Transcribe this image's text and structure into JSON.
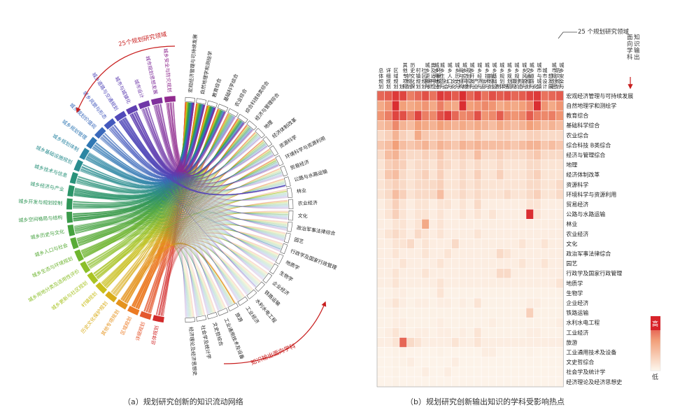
{
  "captions": {
    "a": "（a）规划研究创新的知识流动网络",
    "b": "（b）规划研究创新输出知识的学科受影响热点"
  },
  "chord": {
    "annotation_fields": "25个规划研究领域",
    "annotation_output": "知识输出面向学科"
  },
  "heatmap": {
    "axis_title_columns": "25 个规划研究领域",
    "axis_title_rows": "知识输出面向学科",
    "legend_high": "高",
    "legend_low": "低"
  },
  "colors": {
    "high": "#d8232a",
    "mid": "#f2a07a",
    "low": "#fdf7ee"
  },
  "chart_data": [
    {
      "type": "chord",
      "title": "",
      "groups_fields": [
        "总体规划",
        "详细规划",
        "区域规划",
        "其他专项规划",
        "历史文化保护规划",
        "村镇规划",
        "城乡更新与社区规划",
        "城乡用地分类及适用性评价",
        "城乡生态与环境规划",
        "城乡人口与社会",
        "城乡历史与文化",
        "城乡空间格局与结构",
        "城乡开发与规划控制",
        "城乡经济与产业",
        "城乡技术与信息",
        "城乡基础设施规划",
        "城乡规划体制",
        "城乡规划管理",
        "城乡规划价值观",
        "城乡风貌与形态",
        "城乡道路与交通规划",
        "城市与城镇化",
        "城市设计",
        "城市规划思想发展",
        "城乡安全与防灾规划"
      ],
      "groups_disciplines": [
        "宏观经济管理与可持续发展",
        "自然地理学和测绘学",
        "教育综合",
        "基础科学综合",
        "农业综合",
        "综合科技B类综合",
        "经济与管理综合",
        "地理",
        "经济体制改革",
        "资源科学",
        "环境科学与资源利用",
        "贸易经济",
        "公路与水路运输",
        "林业",
        "农业经济",
        "文化",
        "政治军事法律综合",
        "园艺",
        "行政学及国家行政管理",
        "地质学",
        "生物学",
        "企业经济",
        "铁路运输",
        "水利水电工程",
        "工业经济",
        "旅游",
        "工业通用技术及设备",
        "文史哲综合",
        "社会学及统计学",
        "经济理论及经济思想史"
      ]
    },
    {
      "type": "heatmap",
      "title": "",
      "columns": [
        "总体规划",
        "详细规划",
        "区域规划",
        "其他专项规划",
        "历史文化保护规划",
        "村镇规划",
        "城乡更新与社区规划",
        "城乡用地分类及适用性评价",
        "城乡生态与环境规划",
        "城乡人口与社会",
        "城乡历史与文化",
        "城乡空间格局与结构",
        "城乡开发与规划控制",
        "城乡经济与产业",
        "城乡技术与信息",
        "城乡基础设施规划",
        "城乡规划体制",
        "城乡规划管理",
        "城乡规划价值观",
        "城乡风貌与形态",
        "城乡道路与交通规划",
        "城市与城镇化",
        "城市设计",
        "城市规划思想发展",
        "城乡安全与防灾规划"
      ],
      "rows": [
        "宏观经济管理与可持续发展",
        "自然地理学和测绘学",
        "教育综合",
        "基础科学综合",
        "农业综合",
        "综合科技 B类综合",
        "经济与管理综合",
        "地理",
        "经济体制改革",
        "资源科学",
        "环境科学与资源利用",
        "贸易经济",
        "公路与水路运输",
        "林业",
        "农业经济",
        "文化",
        "政治军事法律综合",
        "园艺",
        "行政学及国家行政管理",
        "地质学",
        "生物学",
        "企业经济",
        "铁路运输",
        "水利水电工程",
        "工业经济",
        "旅游",
        "工业通用技术及设备",
        "文史哲综合",
        "社会学及统计学",
        "经济理论及经济思想史"
      ],
      "value_range": [
        0,
        1
      ],
      "values": [
        [
          0.7,
          0.75,
          0.9,
          0.85,
          0.6,
          0.7,
          0.8,
          0.65,
          0.9,
          0.85,
          0.75,
          0.95,
          0.7,
          0.85,
          0.65,
          0.8,
          0.75,
          0.8,
          0.7,
          0.75,
          0.85,
          0.9,
          0.65,
          0.7,
          0.75
        ],
        [
          0.4,
          0.5,
          0.95,
          0.45,
          0.4,
          0.45,
          0.5,
          0.4,
          0.6,
          0.45,
          0.4,
          0.95,
          0.45,
          0.5,
          0.55,
          0.5,
          0.4,
          0.45,
          0.4,
          0.45,
          0.55,
          0.95,
          0.5,
          0.4,
          0.5
        ],
        [
          0.5,
          0.6,
          0.85,
          0.8,
          0.6,
          0.85,
          0.6,
          0.55,
          0.8,
          0.9,
          0.7,
          0.55,
          0.6,
          0.8,
          0.5,
          0.55,
          0.75,
          0.55,
          0.5,
          0.55,
          0.75,
          0.6,
          0.55,
          0.6,
          0.5
        ],
        [
          0.3,
          0.35,
          0.55,
          0.35,
          0.3,
          0.45,
          0.4,
          0.35,
          0.45,
          0.4,
          0.35,
          0.4,
          0.35,
          0.4,
          0.35,
          0.3,
          0.4,
          0.35,
          0.3,
          0.35,
          0.45,
          0.4,
          0.3,
          0.35,
          0.3
        ],
        [
          0.15,
          0.2,
          0.35,
          0.2,
          0.15,
          0.4,
          0.25,
          0.2,
          0.25,
          0.2,
          0.15,
          0.2,
          0.15,
          0.25,
          0.15,
          0.15,
          0.2,
          0.2,
          0.15,
          0.15,
          0.2,
          0.2,
          0.15,
          0.15,
          0.15
        ],
        [
          0.25,
          0.3,
          0.45,
          0.3,
          0.25,
          0.3,
          0.35,
          0.25,
          0.35,
          0.3,
          0.25,
          0.35,
          0.3,
          0.35,
          0.3,
          0.3,
          0.3,
          0.3,
          0.25,
          0.3,
          0.35,
          0.35,
          0.25,
          0.3,
          0.25
        ],
        [
          0.15,
          0.3,
          0.35,
          0.2,
          0.15,
          0.15,
          0.2,
          0.15,
          0.25,
          0.15,
          0.15,
          0.2,
          0.15,
          0.3,
          0.15,
          0.15,
          0.2,
          0.15,
          0.15,
          0.15,
          0.2,
          0.25,
          0.15,
          0.15,
          0.15
        ],
        [
          0.1,
          0.2,
          0.25,
          0.2,
          0.1,
          0.15,
          0.15,
          0.1,
          0.2,
          0.15,
          0.1,
          0.15,
          0.1,
          0.15,
          0.1,
          0.1,
          0.15,
          0.1,
          0.1,
          0.1,
          0.15,
          0.15,
          0.1,
          0.1,
          0.1
        ],
        [
          0.1,
          0.25,
          0.3,
          0.15,
          0.1,
          0.15,
          0.2,
          0.1,
          0.2,
          0.1,
          0.1,
          0.15,
          0.1,
          0.2,
          0.1,
          0.1,
          0.2,
          0.1,
          0.1,
          0.1,
          0.15,
          0.2,
          0.1,
          0.1,
          0.1
        ],
        [
          0.1,
          0.15,
          0.2,
          0.15,
          0.1,
          0.15,
          0.15,
          0.15,
          0.2,
          0.1,
          0.1,
          0.15,
          0.1,
          0.15,
          0.1,
          0.1,
          0.1,
          0.1,
          0.1,
          0.1,
          0.15,
          0.15,
          0.1,
          0.1,
          0.15
        ],
        [
          0.1,
          0.15,
          0.3,
          0.2,
          0.1,
          0.15,
          0.15,
          0.15,
          0.3,
          0.1,
          0.1,
          0.15,
          0.1,
          0.15,
          0.1,
          0.1,
          0.1,
          0.15,
          0.1,
          0.1,
          0.15,
          0.2,
          0.1,
          0.1,
          0.15
        ],
        [
          0.05,
          0.1,
          0.2,
          0.1,
          0.05,
          0.1,
          0.1,
          0.05,
          0.1,
          0.1,
          0.05,
          0.1,
          0.05,
          0.15,
          0.05,
          0.05,
          0.05,
          0.05,
          0.05,
          0.05,
          0.1,
          0.1,
          0.05,
          0.05,
          0.05
        ],
        [
          0.05,
          0.1,
          0.2,
          0.1,
          0.05,
          0.1,
          0.1,
          0.05,
          0.1,
          0.05,
          0.05,
          0.1,
          0.05,
          0.1,
          0.05,
          0.1,
          0.05,
          0.05,
          0.05,
          0.05,
          0.95,
          0.1,
          0.05,
          0.05,
          0.05
        ],
        [
          0.05,
          0.05,
          0.1,
          0.1,
          0.05,
          0.1,
          0.4,
          0.05,
          0.1,
          0.05,
          0.05,
          0.05,
          0.05,
          0.05,
          0.05,
          0.05,
          0.05,
          0.05,
          0.05,
          0.05,
          0.05,
          0.05,
          0.05,
          0.05,
          0.05
        ],
        [
          0.05,
          0.1,
          0.15,
          0.1,
          0.05,
          0.15,
          0.1,
          0.05,
          0.1,
          0.05,
          0.05,
          0.05,
          0.05,
          0.1,
          0.05,
          0.05,
          0.05,
          0.05,
          0.05,
          0.05,
          0.05,
          0.05,
          0.05,
          0.05,
          0.05
        ],
        [
          0.05,
          0.05,
          0.1,
          0.1,
          0.15,
          0.05,
          0.1,
          0.05,
          0.05,
          0.05,
          0.15,
          0.05,
          0.05,
          0.05,
          0.05,
          0.05,
          0.05,
          0.05,
          0.05,
          0.1,
          0.05,
          0.05,
          0.1,
          0.05,
          0.05
        ],
        [
          0.05,
          0.05,
          0.1,
          0.05,
          0.05,
          0.05,
          0.1,
          0.05,
          0.05,
          0.1,
          0.05,
          0.05,
          0.05,
          0.05,
          0.05,
          0.05,
          0.15,
          0.1,
          0.05,
          0.05,
          0.05,
          0.05,
          0.05,
          0.05,
          0.05
        ],
        [
          0.05,
          0.05,
          0.05,
          0.1,
          0.05,
          0.05,
          0.05,
          0.05,
          0.1,
          0.05,
          0.05,
          0.05,
          0.05,
          0.05,
          0.05,
          0.05,
          0.05,
          0.05,
          0.05,
          0.1,
          0.05,
          0.05,
          0.1,
          0.05,
          0.05
        ],
        [
          0.05,
          0.05,
          0.1,
          0.05,
          0.05,
          0.05,
          0.1,
          0.05,
          0.05,
          0.05,
          0.05,
          0.05,
          0.05,
          0.05,
          0.05,
          0.05,
          0.15,
          0.15,
          0.05,
          0.05,
          0.05,
          0.05,
          0.05,
          0.05,
          0.05
        ],
        [
          0.05,
          0.05,
          0.1,
          0.05,
          0.05,
          0.05,
          0.05,
          0.05,
          0.1,
          0.05,
          0.05,
          0.05,
          0.05,
          0.05,
          0.05,
          0.05,
          0.05,
          0.05,
          0.05,
          0.05,
          0.05,
          0.05,
          0.05,
          0.05,
          0.1
        ],
        [
          0.03,
          0.03,
          0.05,
          0.05,
          0.03,
          0.03,
          0.03,
          0.03,
          0.1,
          0.03,
          0.03,
          0.03,
          0.03,
          0.03,
          0.03,
          0.03,
          0.03,
          0.03,
          0.03,
          0.03,
          0.03,
          0.03,
          0.03,
          0.03,
          0.03
        ],
        [
          0.03,
          0.05,
          0.1,
          0.05,
          0.03,
          0.05,
          0.05,
          0.03,
          0.05,
          0.05,
          0.03,
          0.05,
          0.03,
          0.1,
          0.03,
          0.03,
          0.03,
          0.03,
          0.03,
          0.03,
          0.05,
          0.05,
          0.03,
          0.03,
          0.03
        ],
        [
          0.03,
          0.03,
          0.05,
          0.03,
          0.03,
          0.03,
          0.03,
          0.03,
          0.03,
          0.03,
          0.03,
          0.03,
          0.03,
          0.03,
          0.03,
          0.03,
          0.03,
          0.03,
          0.03,
          0.03,
          0.2,
          0.03,
          0.03,
          0.03,
          0.03
        ],
        [
          0.03,
          0.03,
          0.05,
          0.05,
          0.03,
          0.03,
          0.03,
          0.03,
          0.05,
          0.03,
          0.03,
          0.03,
          0.03,
          0.03,
          0.03,
          0.05,
          0.03,
          0.03,
          0.03,
          0.03,
          0.03,
          0.03,
          0.03,
          0.03,
          0.05
        ],
        [
          0.03,
          0.05,
          0.1,
          0.05,
          0.03,
          0.05,
          0.05,
          0.03,
          0.05,
          0.05,
          0.03,
          0.05,
          0.03,
          0.1,
          0.03,
          0.03,
          0.03,
          0.03,
          0.03,
          0.03,
          0.05,
          0.05,
          0.03,
          0.03,
          0.03
        ],
        [
          0.05,
          0.05,
          0.1,
          0.7,
          0.15,
          0.1,
          0.05,
          0.05,
          0.05,
          0.05,
          0.1,
          0.05,
          0.05,
          0.1,
          0.05,
          0.05,
          0.05,
          0.05,
          0.05,
          0.05,
          0.05,
          0.05,
          0.05,
          0.05,
          0.05
        ],
        [
          0.02,
          0.02,
          0.03,
          0.03,
          0.02,
          0.02,
          0.02,
          0.02,
          0.03,
          0.02,
          0.02,
          0.02,
          0.02,
          0.02,
          0.05,
          0.05,
          0.02,
          0.02,
          0.02,
          0.02,
          0.03,
          0.02,
          0.02,
          0.02,
          0.02
        ],
        [
          0.02,
          0.02,
          0.03,
          0.03,
          0.05,
          0.02,
          0.02,
          0.02,
          0.02,
          0.02,
          0.05,
          0.02,
          0.02,
          0.02,
          0.02,
          0.02,
          0.02,
          0.02,
          0.02,
          0.02,
          0.02,
          0.02,
          0.02,
          0.02,
          0.02
        ],
        [
          0.02,
          0.02,
          0.03,
          0.02,
          0.02,
          0.02,
          0.05,
          0.02,
          0.02,
          0.05,
          0.02,
          0.02,
          0.02,
          0.02,
          0.02,
          0.02,
          0.02,
          0.02,
          0.02,
          0.02,
          0.02,
          0.02,
          0.02,
          0.02,
          0.02
        ],
        [
          0.02,
          0.02,
          0.03,
          0.02,
          0.02,
          0.02,
          0.02,
          0.02,
          0.02,
          0.02,
          0.02,
          0.02,
          0.02,
          0.02,
          0.02,
          0.02,
          0.02,
          0.02,
          0.02,
          0.02,
          0.02,
          0.02,
          0.02,
          0.02,
          0.02
        ]
      ]
    }
  ]
}
